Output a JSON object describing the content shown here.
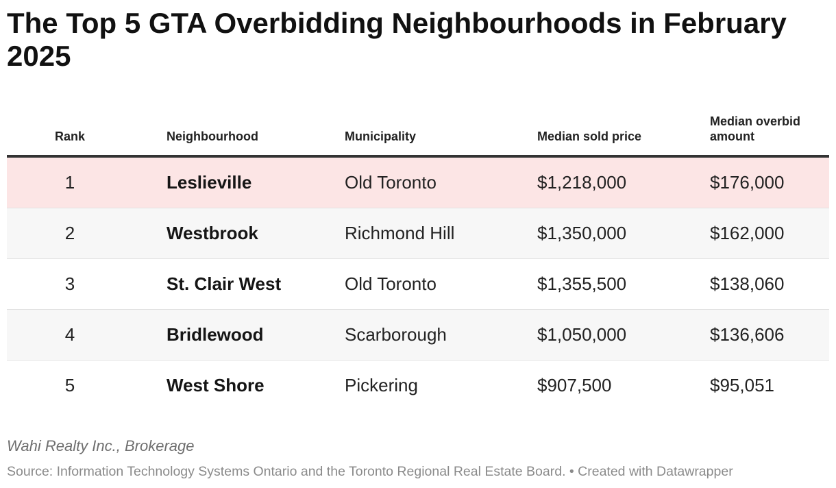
{
  "title": "The Top 5 GTA Overbidding Neighbourhoods in February 2025",
  "chart_data": {
    "type": "table",
    "title": "The Top 5 GTA Overbidding Neighbourhoods in February 2025",
    "columns": [
      "Rank",
      "Neighbourhood",
      "Municipality",
      "Median sold price",
      "Median overbid amount"
    ],
    "rows": [
      {
        "rank": "1",
        "neighbourhood": "Leslieville",
        "municipality": "Old Toronto",
        "median_sold_price": "$1,218,000",
        "median_overbid_amount": "$176,000"
      },
      {
        "rank": "2",
        "neighbourhood": "Westbrook",
        "municipality": "Richmond Hill",
        "median_sold_price": "$1,350,000",
        "median_overbid_amount": "$162,000"
      },
      {
        "rank": "3",
        "neighbourhood": "St. Clair West",
        "municipality": "Old Toronto",
        "median_sold_price": "$1,355,500",
        "median_overbid_amount": "$138,060"
      },
      {
        "rank": "4",
        "neighbourhood": "Bridlewood",
        "municipality": "Scarborough",
        "median_sold_price": "$1,050,000",
        "median_overbid_amount": "$136,606"
      },
      {
        "rank": "5",
        "neighbourhood": "West Shore",
        "municipality": "Pickering",
        "median_sold_price": "$907,500",
        "median_overbid_amount": "$95,051"
      }
    ],
    "highlight_row": 0,
    "colors": {
      "highlight": "#fce5e5",
      "alt_row": "#f7f7f7",
      "header_rule": "#333333"
    }
  },
  "footer": {
    "brand": "Wahi Realty Inc., Brokerage",
    "source": "Source: Information Technology Systems Ontario and the Toronto Regional Real Estate Board. • Created with Datawrapper"
  }
}
